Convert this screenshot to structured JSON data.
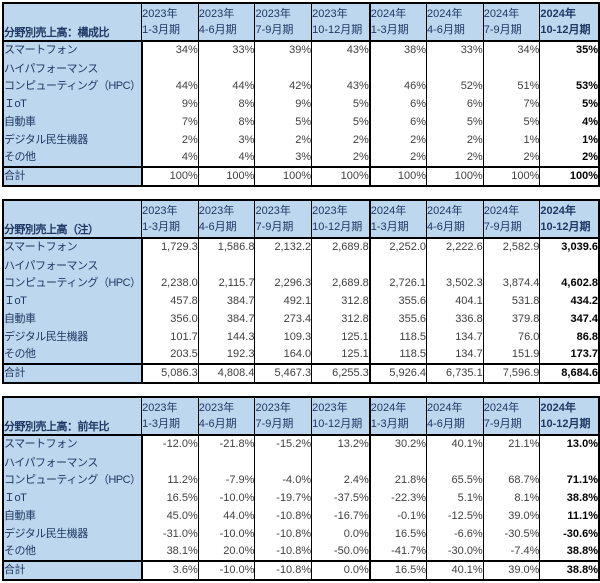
{
  "colors": {
    "header_bg": "#BDD7EE",
    "header_text": "#1F3864",
    "data_text": "#404040",
    "emphasis_text": "#000000",
    "border": "#000000",
    "cell_bg": "#FFFFFF"
  },
  "chart_data": [
    {
      "type": "table",
      "title": "分野別売上高：構成比",
      "columns": [
        {
          "year": "2023年",
          "quarter": "1-3月期"
        },
        {
          "year": "2023年",
          "quarter": "4-6月期"
        },
        {
          "year": "2023年",
          "quarter": "7-9月期"
        },
        {
          "year": "2023年",
          "quarter": "10-12月期"
        },
        {
          "year": "2024年",
          "quarter": "1-3月期"
        },
        {
          "year": "2024年",
          "quarter": "4-6月期"
        },
        {
          "year": "2024年",
          "quarter": "7-9月期"
        },
        {
          "year": "2024年",
          "quarter": "10-12月期"
        }
      ],
      "rows": [
        {
          "label": "スマートフォン",
          "label2": "",
          "values": [
            "34%",
            "33%",
            "39%",
            "43%",
            "38%",
            "33%",
            "34%",
            "35%"
          ]
        },
        {
          "label": "ハイパフォーマンス",
          "label2": "コンピューティング（HPC）",
          "values": [
            "44%",
            "44%",
            "42%",
            "43%",
            "46%",
            "52%",
            "51%",
            "53%"
          ]
        },
        {
          "label": "ＩoT",
          "label2": "",
          "values": [
            "9%",
            "8%",
            "9%",
            "5%",
            "6%",
            "6%",
            "7%",
            "5%"
          ]
        },
        {
          "label": "自動車",
          "label2": "",
          "values": [
            "7%",
            "8%",
            "5%",
            "5%",
            "6%",
            "5%",
            "5%",
            "4%"
          ]
        },
        {
          "label": "デジタル民生機器",
          "label2": "",
          "values": [
            "2%",
            "3%",
            "2%",
            "2%",
            "2%",
            "2%",
            "1%",
            "1%"
          ]
        },
        {
          "label": "その他",
          "label2": "",
          "values": [
            "4%",
            "4%",
            "3%",
            "2%",
            "2%",
            "2%",
            "2%",
            "2%"
          ]
        }
      ],
      "total": {
        "label": "合計",
        "values": [
          "100%",
          "100%",
          "100%",
          "100%",
          "100%",
          "100%",
          "100%",
          "100%"
        ]
      }
    },
    {
      "type": "table",
      "title": "分野別売上高（注）",
      "columns": [
        {
          "year": "2023年",
          "quarter": "1-3月期"
        },
        {
          "year": "2023年",
          "quarter": "4-6月期"
        },
        {
          "year": "2023年",
          "quarter": "7-9月期"
        },
        {
          "year": "2023年",
          "quarter": "10-12月期"
        },
        {
          "year": "2024年",
          "quarter": "1-3月期"
        },
        {
          "year": "2024年",
          "quarter": "4-6月期"
        },
        {
          "year": "2024年",
          "quarter": "7-9月期"
        },
        {
          "year": "2024年",
          "quarter": "10-12月期"
        }
      ],
      "rows": [
        {
          "label": "スマートフォン",
          "label2": "",
          "values": [
            "1,729.3",
            "1,586.8",
            "2,132.2",
            "2,689.8",
            "2,252.0",
            "2,222.6",
            "2,582.9",
            "3,039.6"
          ]
        },
        {
          "label": "ハイパフォーマンス",
          "label2": "コンピューティング（HPC）",
          "values": [
            "2,238.0",
            "2,115.7",
            "2,296.3",
            "2,689.8",
            "2,726.1",
            "3,502.3",
            "3,874.4",
            "4,602.8"
          ]
        },
        {
          "label": "ＩoT",
          "label2": "",
          "values": [
            "457.8",
            "384.7",
            "492.1",
            "312.8",
            "355.6",
            "404.1",
            "531.8",
            "434.2"
          ]
        },
        {
          "label": "自動車",
          "label2": "",
          "values": [
            "356.0",
            "384.7",
            "273.4",
            "312.8",
            "355.6",
            "336.8",
            "379.8",
            "347.4"
          ]
        },
        {
          "label": "デジタル民生機器",
          "label2": "",
          "values": [
            "101.7",
            "144.3",
            "109.3",
            "125.1",
            "118.5",
            "134.7",
            "76.0",
            "86.8"
          ]
        },
        {
          "label": "その他",
          "label2": "",
          "values": [
            "203.5",
            "192.3",
            "164.0",
            "125.1",
            "118.5",
            "134.7",
            "151.9",
            "173.7"
          ]
        }
      ],
      "total": {
        "label": "合計",
        "values": [
          "5,086.3",
          "4,808.4",
          "5,467.3",
          "6,255.3",
          "5,926.4",
          "6,735.1",
          "7,596.9",
          "8,684.6"
        ]
      }
    },
    {
      "type": "table",
      "title": "分野別売上高：前年比",
      "columns": [
        {
          "year": "2023年",
          "quarter": "1-3月期"
        },
        {
          "year": "2023年",
          "quarter": "4-6月期"
        },
        {
          "year": "2023年",
          "quarter": "7-9月期"
        },
        {
          "year": "2023年",
          "quarter": "10-12月期"
        },
        {
          "year": "2024年",
          "quarter": "1-3月期"
        },
        {
          "year": "2024年",
          "quarter": "4-6月期"
        },
        {
          "year": "2024年",
          "quarter": "7-9月期"
        },
        {
          "year": "2024年",
          "quarter": "10-12月期"
        }
      ],
      "rows": [
        {
          "label": "スマートフォン",
          "label2": "",
          "values": [
            "-12.0%",
            "-21.8%",
            "-15.2%",
            "13.2%",
            "30.2%",
            "40.1%",
            "21.1%",
            "13.0%"
          ]
        },
        {
          "label": "ハイパフォーマンス",
          "label2": "コンピューティング（HPC）",
          "values": [
            "11.2%",
            "-7.9%",
            "-4.0%",
            "2.4%",
            "21.8%",
            "65.5%",
            "68.7%",
            "71.1%"
          ]
        },
        {
          "label": "ＩoT",
          "label2": "",
          "values": [
            "16.5%",
            "-10.0%",
            "-19.7%",
            "-37.5%",
            "-22.3%",
            "5.1%",
            "8.1%",
            "38.8%"
          ]
        },
        {
          "label": "自動車",
          "label2": "",
          "values": [
            "45.0%",
            "44.0%",
            "-10.8%",
            "-16.7%",
            "-0.1%",
            "-12.5%",
            "39.0%",
            "11.1%"
          ]
        },
        {
          "label": "デジタル民生機器",
          "label2": "",
          "values": [
            "-31.0%",
            "-10.0%",
            "-10.8%",
            "0.0%",
            "16.5%",
            "-6.6%",
            "-30.5%",
            "-30.6%"
          ]
        },
        {
          "label": "その他",
          "label2": "",
          "values": [
            "38.1%",
            "20.0%",
            "-10.8%",
            "-50.0%",
            "-41.7%",
            "-30.0%",
            "-7.4%",
            "38.8%"
          ]
        }
      ],
      "total": {
        "label": "合計",
        "values": [
          "3.6%",
          "-10.0%",
          "-10.8%",
          "0.0%",
          "16.5%",
          "40.1%",
          "39.0%",
          "38.8%"
        ]
      }
    }
  ]
}
